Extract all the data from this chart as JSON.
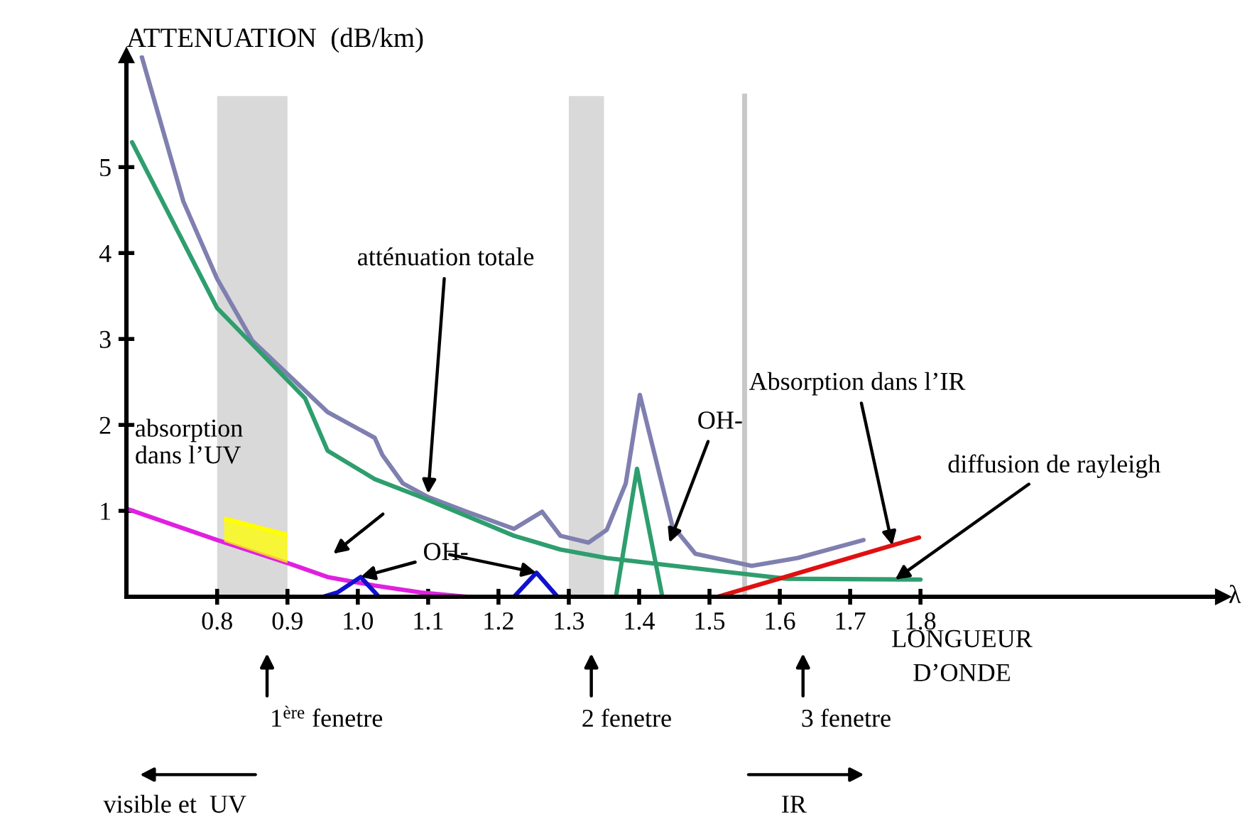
{
  "chart_data": {
    "type": "line",
    "xlabel": "LONGUEUR\nD’ONDE",
    "ylabel": "ATTENUATION  (dB/km)",
    "xlim": [
      0.671,
      2.23
    ],
    "ylim": [
      0,
      6.3
    ],
    "xticks": [
      0.8,
      0.9,
      {
        "value": 1.0,
        "label": "1.0"
      },
      1.1,
      1.2,
      1.3,
      1.4,
      1.5,
      1.6,
      1.7,
      1.8
    ],
    "yticks": [
      1,
      2,
      3,
      4,
      5
    ],
    "grid": false,
    "legend": false,
    "series": [
      {
        "color": "#ffff00",
        "x": [
          0.81,
          0.9
        ],
        "values": [
          0.91,
          0.72
        ],
        "lower": [
          0.64,
          0.39
        ],
        "upper": [
          0.91,
          0.72
        ]
      },
      {
        "color": "#7f7fb0",
        "x": [
          0.693,
          0.752,
          0.8,
          0.85,
          0.957,
          1.024,
          1.035,
          1.064,
          1.1,
          1.155,
          1.222,
          1.262,
          1.288,
          1.328,
          1.354,
          1.381,
          1.401,
          1.447,
          1.48,
          1.56,
          1.625,
          1.719
        ],
        "values": [
          6.28,
          4.6,
          3.7,
          2.98,
          2.15,
          1.85,
          1.65,
          1.32,
          1.16,
          0.99,
          0.79,
          0.99,
          0.71,
          0.63,
          0.78,
          1.32,
          2.35,
          0.83,
          0.5,
          0.36,
          0.45,
          0.66
        ]
      },
      {
        "color": "#2e9e6e",
        "x": [
          0.679,
          0.8,
          0.925,
          0.957,
          1.024,
          1.09,
          1.155,
          1.222,
          1.288,
          1.354,
          1.48,
          1.61,
          1.8
        ],
        "values": [
          5.29,
          3.36,
          2.31,
          1.7,
          1.37,
          1.16,
          0.94,
          0.71,
          0.55,
          0.45,
          0.33,
          0.21,
          0.2
        ]
      },
      {
        "color": "#2e9e6e",
        "x": [
          1.367,
          1.397,
          1.433
        ],
        "values": [
          0,
          1.49,
          0
        ]
      },
      {
        "color": "#e020e0",
        "x": [
          0.673,
          0.8,
          0.905,
          0.957,
          1.024,
          1.09,
          1.155
        ],
        "values": [
          1.02,
          0.66,
          0.38,
          0.23,
          0.13,
          0.05,
          0
        ]
      },
      {
        "color": "#1010d0",
        "x": [
          0.951,
          0.971,
          1.004,
          1.03
        ],
        "values": [
          0,
          0.05,
          0.23,
          0
        ]
      },
      {
        "color": "#1010d0",
        "x": [
          1.222,
          1.254,
          1.284
        ],
        "values": [
          0,
          0.28,
          0
        ]
      },
      {
        "color": "#e01010",
        "x": [
          1.512,
          1.798
        ],
        "values": [
          0,
          0.69
        ]
      }
    ],
    "bands": [
      {
        "axis": "x",
        "from": 0.8,
        "to": 0.9,
        "color": "#d9d9d9"
      },
      {
        "axis": "x",
        "from": 1.3,
        "to": 1.35,
        "color": "#d9d9d9"
      }
    ],
    "ref_lines": [
      {
        "axis": "x",
        "value": 1.55,
        "color": "#c8c8c8"
      }
    ],
    "annotations": [
      {
        "text": "atténuation totale",
        "x": 1.1,
        "y": 1.2
      },
      "absorption\ndans l’UV",
      {
        "text": "OH-",
        "x": 1.004,
        "y": 0.23
      },
      "OH-",
      {
        "text": "Absorption dans l’IR",
        "x": 1.76,
        "y": 0.598
      },
      {
        "text": "diffusion de rayleigh",
        "x": 1.764,
        "y": 0.2
      },
      "1$^{ère}$ fenetre",
      "2 fenetre",
      "3 fenetre",
      "visible et  UV",
      "IR",
      "λ"
    ]
  }
}
